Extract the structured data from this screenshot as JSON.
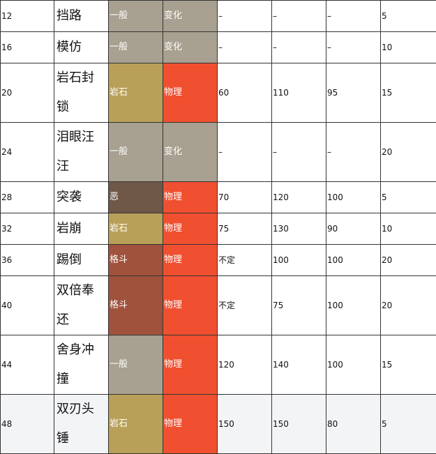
{
  "colors": {
    "一般": "#a8a090",
    "岩石": "#b8a058",
    "恶": "#6f5848",
    "格斗": "#a0523c",
    "变化": "#a8a090",
    "物理": "#f05030"
  },
  "rows": [
    {
      "level": "12",
      "name": "挡路",
      "type": "一般",
      "category": "变化",
      "power": "–",
      "power_alt": "–",
      "accuracy": "–",
      "pp": "5",
      "tall": false
    },
    {
      "level": "16",
      "name": "模仿",
      "type": "一般",
      "category": "变化",
      "power": "–",
      "power_alt": "–",
      "accuracy": "–",
      "pp": "10",
      "tall": false
    },
    {
      "level": "20",
      "name": "岩石封锁",
      "type": "岩石",
      "category": "物理",
      "power": "60",
      "power_alt": "110",
      "accuracy": "95",
      "pp": "15",
      "tall": true
    },
    {
      "level": "24",
      "name": "泪眼汪汪",
      "type": "一般",
      "category": "变化",
      "power": "–",
      "power_alt": "–",
      "accuracy": "–",
      "pp": "20",
      "tall": true
    },
    {
      "level": "28",
      "name": "突袭",
      "type": "恶",
      "category": "物理",
      "power": "70",
      "power_alt": "120",
      "accuracy": "100",
      "pp": "5",
      "tall": false
    },
    {
      "level": "32",
      "name": "岩崩",
      "type": "岩石",
      "category": "物理",
      "power": "75",
      "power_alt": "130",
      "accuracy": "90",
      "pp": "10",
      "tall": false
    },
    {
      "level": "36",
      "name": "踢倒",
      "type": "格斗",
      "category": "物理",
      "power": "不定",
      "power_alt": "100",
      "accuracy": "100",
      "pp": "20",
      "tall": false
    },
    {
      "level": "40",
      "name": "双倍奉还",
      "type": "格斗",
      "category": "物理",
      "power": "不定",
      "power_alt": "75",
      "accuracy": "100",
      "pp": "20",
      "tall": true
    },
    {
      "level": "44",
      "name": "舍身冲撞",
      "type": "一般",
      "category": "物理",
      "power": "120",
      "power_alt": "140",
      "accuracy": "100",
      "pp": "15",
      "tall": true
    },
    {
      "level": "48",
      "name": "双刃头锤",
      "type": "岩石",
      "category": "物理",
      "power": "150",
      "power_alt": "150",
      "accuracy": "80",
      "pp": "5",
      "tall": true
    }
  ]
}
